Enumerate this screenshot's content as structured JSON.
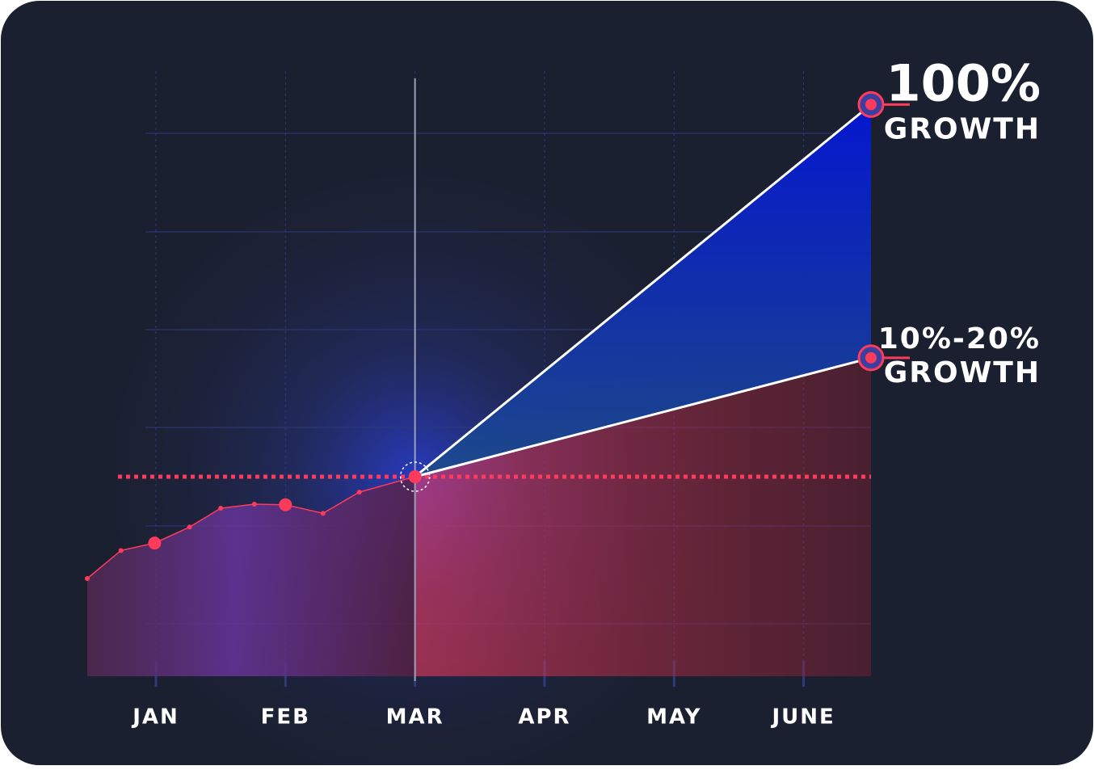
{
  "chart_data": {
    "type": "line",
    "x": [
      0.47,
      0.73,
      0.99,
      1.26,
      1.5,
      1.76,
      2.0,
      2.29,
      2.57,
      3.0
    ],
    "xlim": [
      0.47,
      6.52
    ],
    "xticks": [
      {
        "value": 1,
        "label": "JAN"
      },
      {
        "value": 2,
        "label": "FEB"
      },
      {
        "value": 3,
        "label": "MAR"
      },
      {
        "value": 4,
        "label": "APR"
      },
      {
        "value": 5,
        "label": "MAY"
      },
      {
        "value": 6,
        "label": "JUNE"
      }
    ],
    "ylim": [
      0,
      105
    ],
    "series": [
      {
        "color": "#ff3b5c",
        "x": [
          0.47,
          0.73,
          0.99,
          1.26,
          1.5,
          1.76,
          2.0,
          2.29,
          2.57,
          3.0
        ],
        "values": [
          17.1,
          22.0,
          23.3,
          26.1,
          29.4,
          30.1,
          30.0,
          28.5,
          32.2,
          34.9
        ],
        "marker_sizes": [
          3,
          3,
          8,
          3,
          3,
          3,
          8,
          3,
          3,
          8
        ]
      },
      {
        "color": "#ffffff",
        "x": [
          3.0,
          6.52
        ],
        "values": [
          34.9,
          100
        ]
      },
      {
        "color": "#ffffff",
        "x": [
          3.0,
          6.52
        ],
        "values": [
          34.9,
          55.7
        ]
      }
    ],
    "reference_line": {
      "value": 34.9,
      "color": "#ff3b5c"
    },
    "highlight_x": 3,
    "annotations": [
      {
        "lines": [
          "100%",
          "GROWTH"
        ],
        "series": 1
      },
      {
        "lines": [
          "10%-20%",
          "GROWTH"
        ],
        "series": 2
      }
    ]
  }
}
